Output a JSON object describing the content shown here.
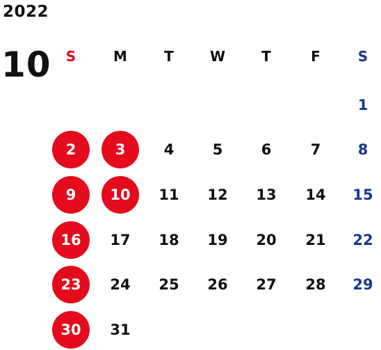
{
  "header": {
    "year": "2022",
    "month": "10"
  },
  "colors": {
    "sunday_red": "#e30b1c",
    "saturday_blue": "#17398c",
    "weekday_text": "#111111",
    "holiday_circle": "#e30b1c"
  },
  "weekday_headers": [
    "S",
    "M",
    "T",
    "W",
    "T",
    "F",
    "S"
  ],
  "weeks": [
    [
      {
        "day": "",
        "holiday": false
      },
      {
        "day": "",
        "holiday": false
      },
      {
        "day": "",
        "holiday": false
      },
      {
        "day": "",
        "holiday": false
      },
      {
        "day": "",
        "holiday": false
      },
      {
        "day": "",
        "holiday": false
      },
      {
        "day": "1",
        "holiday": false
      }
    ],
    [
      {
        "day": "2",
        "holiday": true
      },
      {
        "day": "3",
        "holiday": true
      },
      {
        "day": "4",
        "holiday": false
      },
      {
        "day": "5",
        "holiday": false
      },
      {
        "day": "6",
        "holiday": false
      },
      {
        "day": "7",
        "holiday": false
      },
      {
        "day": "8",
        "holiday": false
      }
    ],
    [
      {
        "day": "9",
        "holiday": true
      },
      {
        "day": "10",
        "holiday": true
      },
      {
        "day": "11",
        "holiday": false
      },
      {
        "day": "12",
        "holiday": false
      },
      {
        "day": "13",
        "holiday": false
      },
      {
        "day": "14",
        "holiday": false
      },
      {
        "day": "15",
        "holiday": false
      }
    ],
    [
      {
        "day": "16",
        "holiday": true
      },
      {
        "day": "17",
        "holiday": false
      },
      {
        "day": "18",
        "holiday": false
      },
      {
        "day": "19",
        "holiday": false
      },
      {
        "day": "20",
        "holiday": false
      },
      {
        "day": "21",
        "holiday": false
      },
      {
        "day": "22",
        "holiday": false
      }
    ],
    [
      {
        "day": "23",
        "holiday": true
      },
      {
        "day": "24",
        "holiday": false
      },
      {
        "day": "25",
        "holiday": false
      },
      {
        "day": "26",
        "holiday": false
      },
      {
        "day": "27",
        "holiday": false
      },
      {
        "day": "28",
        "holiday": false
      },
      {
        "day": "29",
        "holiday": false
      }
    ],
    [
      {
        "day": "30",
        "holiday": true
      },
      {
        "day": "31",
        "holiday": false
      },
      {
        "day": "",
        "holiday": false
      },
      {
        "day": "",
        "holiday": false
      },
      {
        "day": "",
        "holiday": false
      },
      {
        "day": "",
        "holiday": false
      },
      {
        "day": "",
        "holiday": false
      }
    ]
  ]
}
